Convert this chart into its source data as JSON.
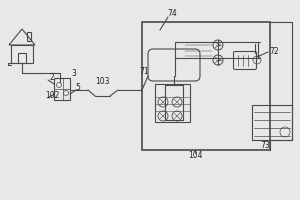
{
  "bg_color": "#e8e8e8",
  "line_color": "#4a4a4a",
  "label_color": "#222222",
  "fig_width": 3.0,
  "fig_height": 2.0,
  "dpi": 100
}
